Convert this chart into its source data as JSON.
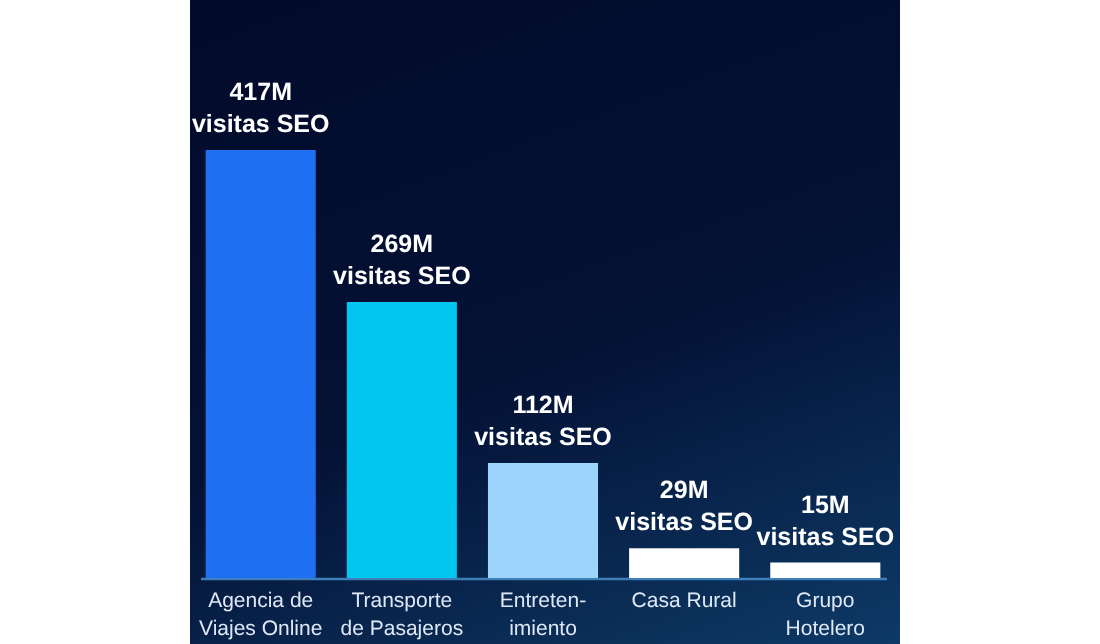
{
  "chart_data": {
    "type": "bar",
    "categories": [
      "Agencia de Viajes Online",
      "Transporte de Pasajeros",
      "Entreten- imiento",
      "Casa Rural",
      "Grupo Hotelero"
    ],
    "values": [
      417,
      269,
      112,
      29,
      15
    ],
    "value_labels": [
      "417M visitas SEO",
      "269M visitas SEO",
      "112M visitas SEO",
      "29M visitas SEO",
      "15M visitas SEO"
    ],
    "colors": [
      "#1f6ff2",
      "#00c6f0",
      "#9dd4fb",
      "#ffffff",
      "#ffffff"
    ]
  }
}
